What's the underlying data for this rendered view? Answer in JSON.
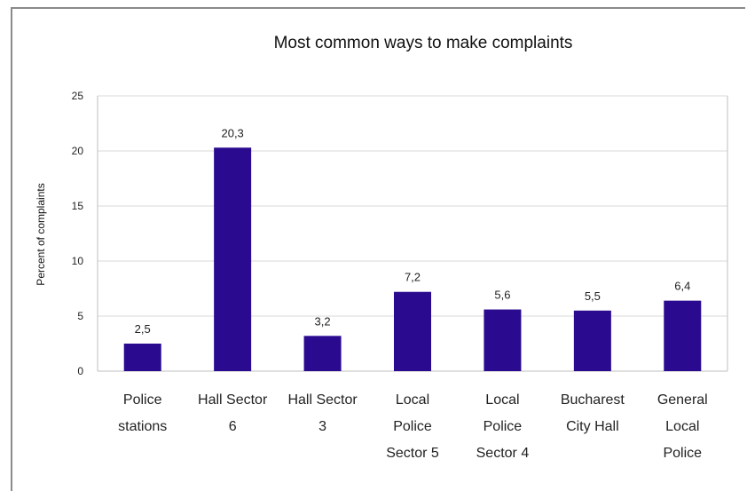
{
  "chart_data": {
    "type": "bar",
    "title": "Most common ways to make complaints",
    "xlabel": "",
    "ylabel": "Percent of complaints",
    "ylim": [
      0,
      25
    ],
    "yticks": [
      0,
      5,
      10,
      15,
      20,
      25
    ],
    "grid": true,
    "categories": [
      [
        "Police",
        "stations"
      ],
      [
        "Hall Sector",
        "6"
      ],
      [
        "Hall Sector",
        "3"
      ],
      [
        "Local",
        "Police",
        "Sector 5"
      ],
      [
        "Local",
        "Police",
        "Sector 4"
      ],
      [
        "Bucharest",
        "City Hall"
      ],
      [
        "General",
        "Local",
        "Police"
      ]
    ],
    "values": [
      2.5,
      20.3,
      3.2,
      7.2,
      5.6,
      5.5,
      6.4
    ],
    "data_labels": [
      "2,5",
      "20,3",
      "3,2",
      "7,2",
      "5,6",
      "5,5",
      "6,4"
    ],
    "colors": {
      "bar": "#2a0a8f",
      "grid": "#d9d9d9",
      "axis": "#bfbfbf",
      "text": "#222222"
    }
  }
}
